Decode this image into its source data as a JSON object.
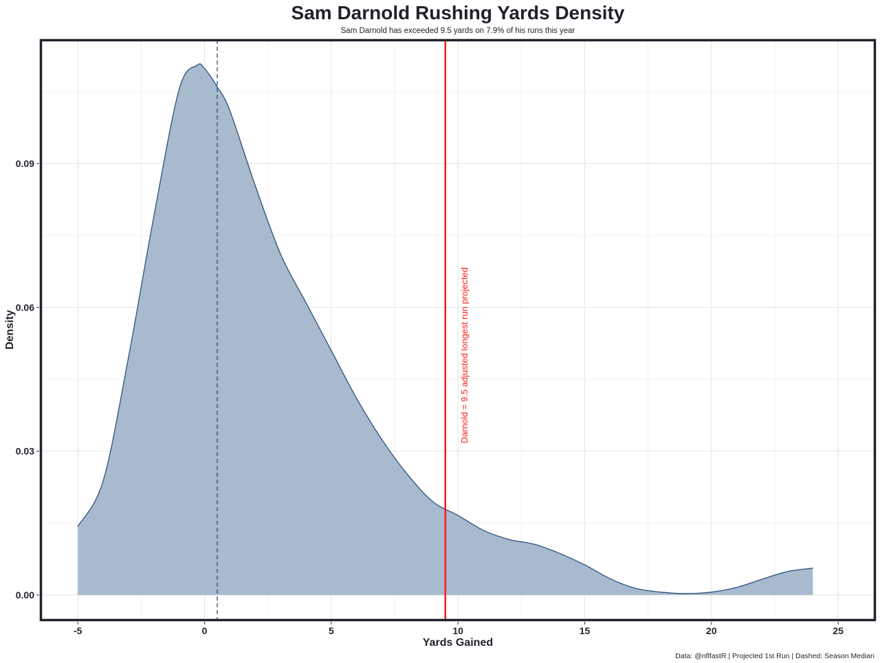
{
  "chart_data": {
    "type": "area",
    "title": "Sam Darnold Rushing Yards Density",
    "subtitle": "Sam Darnold has exceeded 9.5 yards on 7.9% of his runs this year",
    "caption": "Data: @nflfastR | Projected 1st Run | Dashed: Season Median",
    "xlabel": "Yards Gained",
    "ylabel": "Density",
    "xlim": [
      -6.47,
      26.46
    ],
    "ylim": [
      -0.0053,
      0.1158
    ],
    "xticks": [
      -5,
      0,
      5,
      10,
      15,
      20,
      25
    ],
    "xtick_labels": [
      "-5",
      "0",
      "5",
      "10",
      "15",
      "20",
      "25"
    ],
    "yticks": [
      0,
      0.03,
      0.06,
      0.09
    ],
    "ytick_labels": [
      "0.00",
      "0.03",
      "0.06",
      "0.09"
    ],
    "grid": true,
    "series": [
      {
        "name": "density",
        "x": [
          -5,
          -4,
          -3,
          -2,
          -1,
          -0.3,
          0,
          0.5,
          1,
          2,
          3,
          4,
          5,
          6,
          7,
          8,
          9,
          10,
          11,
          12,
          13,
          14,
          15,
          16,
          17,
          18,
          19,
          20,
          21,
          22,
          23,
          24
        ],
        "y": [
          0.0143,
          0.0238,
          0.0496,
          0.079,
          0.1055,
          0.1105,
          0.1098,
          0.106,
          0.101,
          0.0854,
          0.0711,
          0.061,
          0.051,
          0.041,
          0.0324,
          0.0252,
          0.0195,
          0.0166,
          0.0135,
          0.0116,
          0.0106,
          0.0087,
          0.0063,
          0.0034,
          0.0014,
          0.0006,
          0.0003,
          0.0006,
          0.0016,
          0.0033,
          0.0049,
          0.0056
        ]
      }
    ],
    "median_line": {
      "x": 0.5,
      "style": "dashed"
    },
    "projection_line": {
      "x": 9.5,
      "label": "Darnold = 9.5 adjusted longest run projected",
      "label_y": 0.05
    },
    "colors": {
      "fill": "#a8bace",
      "stroke": "#2c4f7c",
      "projection": "#ff1a1a",
      "text": "#1f222b",
      "border": "#1f222b"
    }
  }
}
